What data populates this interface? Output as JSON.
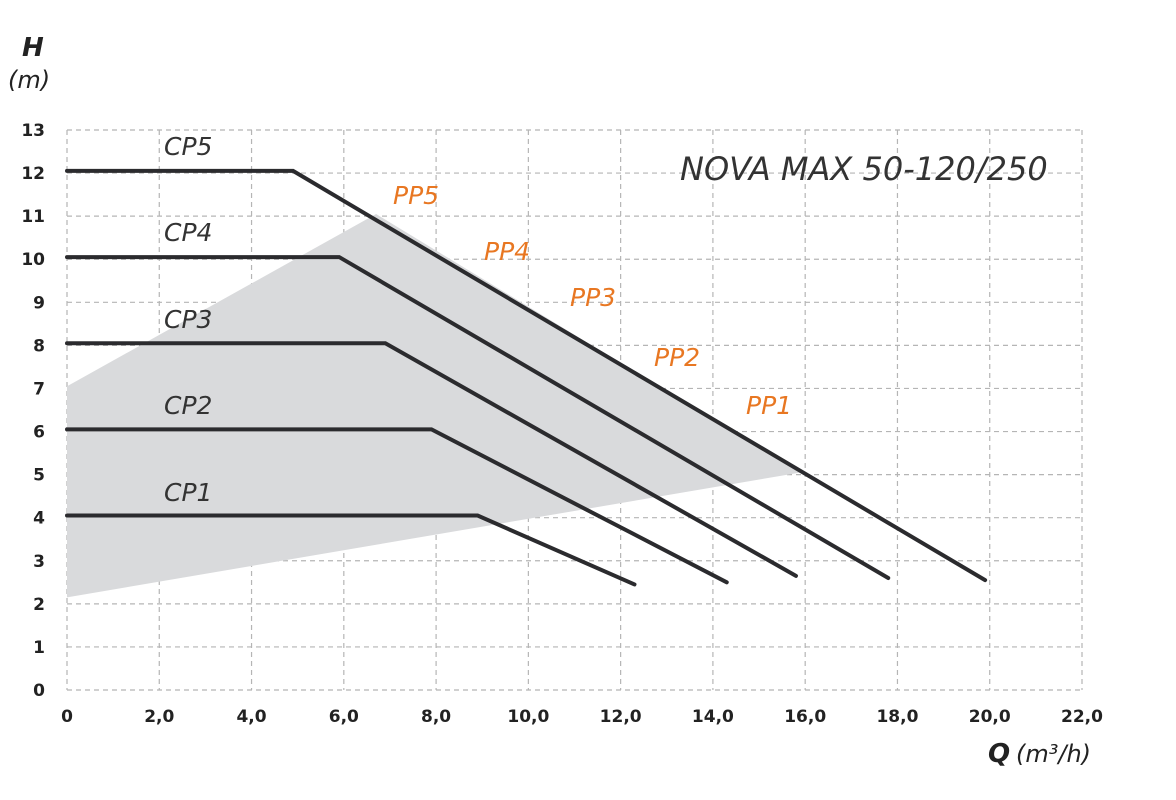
{
  "chart_data": {
    "type": "line",
    "title": "NOVA MAX 50-120/250",
    "ylabel": {
      "symbol": "H",
      "unit": "(m)"
    },
    "xlabel": {
      "symbol": "Q",
      "unit": "(m³/h)"
    },
    "xlim": [
      0,
      22
    ],
    "ylim": [
      0,
      13
    ],
    "grid": true,
    "grid_style": "dashed",
    "x_ticks": [
      "0",
      "2,0",
      "4,0",
      "6,0",
      "8,0",
      "10,0",
      "12,0",
      "14,0",
      "16,0",
      "18,0",
      "20,0",
      "22,0"
    ],
    "x_tick_values": [
      0,
      2,
      4,
      6,
      8,
      10,
      12,
      14,
      16,
      18,
      20,
      22
    ],
    "y_ticks": [
      "0",
      "1",
      "2",
      "3",
      "4",
      "5",
      "6",
      "7",
      "8",
      "9",
      "10",
      "11",
      "12",
      "13"
    ],
    "y_tick_values": [
      0,
      1,
      2,
      3,
      4,
      5,
      6,
      7,
      8,
      9,
      10,
      11,
      12,
      13
    ],
    "series": [
      {
        "name": "CP1",
        "x": [
          0,
          8.9,
          12.3
        ],
        "y": [
          4.05,
          4.05,
          2.45
        ]
      },
      {
        "name": "CP2",
        "x": [
          0,
          7.9,
          14.3
        ],
        "y": [
          6.05,
          6.05,
          2.5
        ]
      },
      {
        "name": "CP3",
        "x": [
          0,
          6.9,
          15.8
        ],
        "y": [
          8.05,
          8.05,
          2.65
        ]
      },
      {
        "name": "CP4",
        "x": [
          0,
          5.9,
          17.8
        ],
        "y": [
          10.05,
          10.05,
          2.6
        ]
      },
      {
        "name": "CP5",
        "x": [
          0,
          4.9,
          19.9
        ],
        "y": [
          12.05,
          12.05,
          2.55
        ]
      }
    ],
    "pp_region": {
      "labels": [
        "PP5",
        "PP4",
        "PP3",
        "PP2",
        "PP1"
      ],
      "polygon_x": [
        0,
        6.7,
        15.9,
        0
      ],
      "polygon_y": [
        7.05,
        11.05,
        5.05,
        2.15
      ]
    },
    "colors": {
      "curves": "#2b2b2e",
      "pp_labels": "#e87722",
      "pp_region": "#d9dadc",
      "grid": "#b5b5b5"
    }
  }
}
